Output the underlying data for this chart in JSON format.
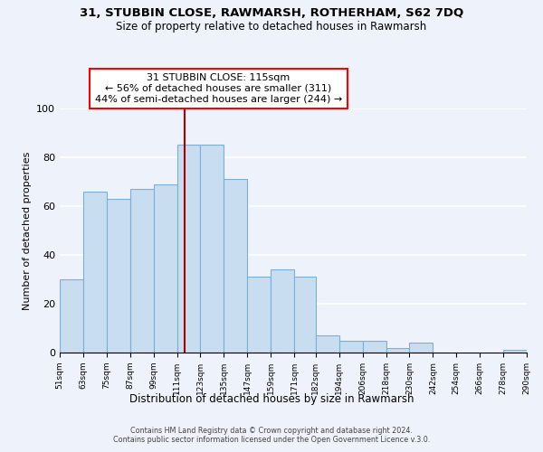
{
  "title": "31, STUBBIN CLOSE, RAWMARSH, ROTHERHAM, S62 7DQ",
  "subtitle": "Size of property relative to detached houses in Rawmarsh",
  "xlabel": "Distribution of detached houses by size in Rawmarsh",
  "ylabel": "Number of detached properties",
  "bar_color": "#c8ddf0",
  "bar_edge_color": "#7bafd4",
  "reference_line_x": 115,
  "reference_line_color": "#aa0000",
  "bin_edges": [
    51,
    63,
    75,
    87,
    99,
    111,
    123,
    135,
    147,
    159,
    171,
    182,
    194,
    206,
    218,
    230,
    242,
    254,
    266,
    278,
    290
  ],
  "bar_heights": [
    30,
    66,
    63,
    67,
    69,
    85,
    85,
    71,
    31,
    34,
    31,
    7,
    5,
    5,
    2,
    4,
    0,
    0,
    0,
    1
  ],
  "tick_labels": [
    "51sqm",
    "63sqm",
    "75sqm",
    "87sqm",
    "99sqm",
    "111sqm",
    "123sqm",
    "135sqm",
    "147sqm",
    "159sqm",
    "171sqm",
    "182sqm",
    "194sqm",
    "206sqm",
    "218sqm",
    "230sqm",
    "242sqm",
    "254sqm",
    "266sqm",
    "278sqm",
    "290sqm"
  ],
  "ylim": [
    0,
    100
  ],
  "yticks": [
    0,
    20,
    40,
    60,
    80,
    100
  ],
  "annotation_line1": "31 STUBBIN CLOSE: 115sqm",
  "annotation_line2": "← 56% of detached houses are smaller (311)",
  "annotation_line3": "44% of semi-detached houses are larger (244) →",
  "footer1": "Contains HM Land Registry data © Crown copyright and database right 2024.",
  "footer2": "Contains public sector information licensed under the Open Government Licence v.3.0.",
  "background_color": "#eef3fb",
  "grid_color": "#ffffff"
}
